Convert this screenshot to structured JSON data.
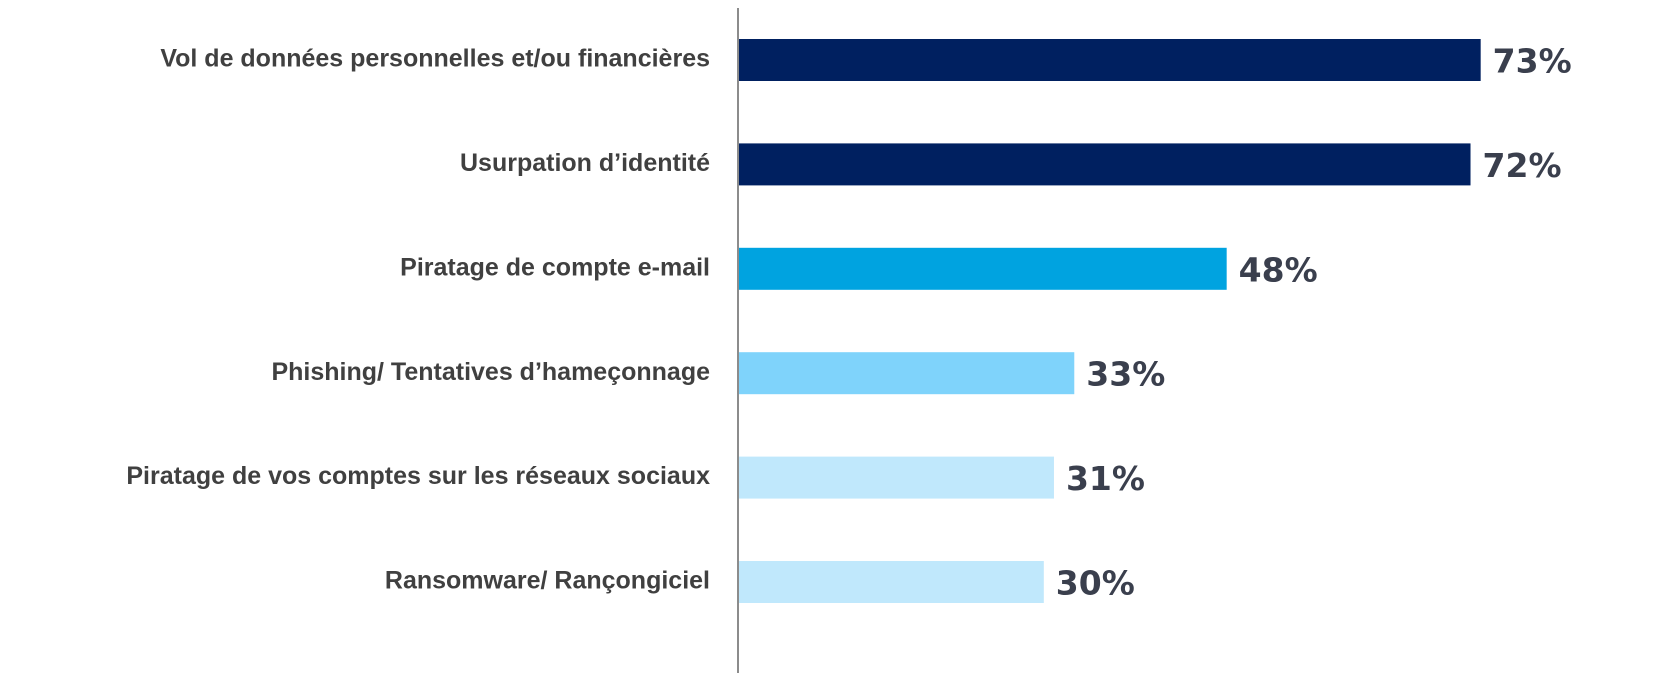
{
  "chart_data": {
    "type": "barh",
    "categories": [
      "Vol de données personnelles et/ou financières",
      "Usurpation d’identité",
      "Piratage de compte e-mail",
      "Phishing/ Tentatives d’hameçonnage",
      "Piratage de vos comptes sur les réseaux sociaux",
      "Ransomware/ Rançongiciel"
    ],
    "values": [
      73,
      72,
      48,
      33,
      31,
      30
    ],
    "value_labels": [
      "73%",
      "72%",
      "48%",
      "33%",
      "31%",
      "30%"
    ],
    "colors": [
      "#002060",
      "#002060",
      "#00a3e0",
      "#7fd3fb",
      "#c0e8fc",
      "#c0e8fc"
    ],
    "xlim": [
      0,
      100
    ]
  }
}
